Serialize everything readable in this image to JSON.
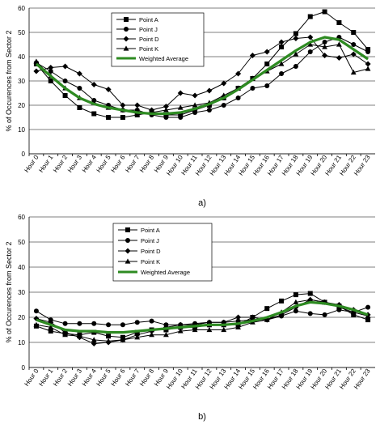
{
  "chart_data": [
    {
      "type": "line",
      "sub_label": "a)",
      "ylabel": "% of Occurences from Sector 2",
      "xlabel": "",
      "ylim": [
        0,
        60
      ],
      "yticks": [
        0,
        10,
        20,
        30,
        40,
        50,
        60
      ],
      "grid": "horizontal",
      "legend_position": "top-center",
      "categories": [
        "Hour 0",
        "Hour 1",
        "Hour 2",
        "Hour 3",
        "Hour 4",
        "Hour 5",
        "Hour 6",
        "Hour 7",
        "Hour 8",
        "Hour 9",
        "Hour 10",
        "Hour 11",
        "Hour 12",
        "Hour 13",
        "Hour 14",
        "Hour 15",
        "Hour 16",
        "Hour 17",
        "Hour 18",
        "Hour 19",
        "Hour 20",
        "Hour 21",
        "Hour 22",
        "Hour 23"
      ],
      "series": [
        {
          "name": "Point A",
          "marker": "square",
          "color": "#000000",
          "values": [
            37,
            30,
            24,
            19,
            16.5,
            15,
            15,
            16,
            17,
            16,
            16,
            18,
            20,
            23,
            27,
            31,
            37,
            44,
            49.5,
            56.5,
            58.5,
            54,
            50,
            43
          ]
        },
        {
          "name": "Point J",
          "marker": "circle",
          "color": "#000000",
          "values": [
            37.5,
            34,
            30,
            27,
            22,
            20,
            18,
            18,
            16,
            15,
            15,
            17,
            18,
            20,
            23,
            27,
            28,
            33,
            36,
            42,
            46,
            48,
            45,
            42
          ]
        },
        {
          "name": "Point D",
          "marker": "diamond",
          "color": "#000000",
          "values": [
            34,
            35.5,
            36,
            33,
            28.5,
            26.5,
            20,
            20,
            18,
            19.5,
            25,
            24,
            26,
            29,
            33,
            40.5,
            42,
            46,
            47.5,
            48,
            40.5,
            39.5,
            41,
            37
          ]
        },
        {
          "name": "Point K",
          "marker": "triangle",
          "color": "#000000",
          "values": [
            38,
            32,
            27,
            23,
            21,
            19,
            18,
            17,
            17,
            18,
            19,
            20,
            21,
            24,
            27,
            31,
            34,
            37,
            41,
            45,
            44,
            45,
            33.5,
            35
          ]
        },
        {
          "name": "Weighted Average",
          "marker": "none",
          "color": "#2e8b22",
          "values": [
            37,
            32,
            27,
            23,
            20.5,
            19,
            18,
            17,
            16.5,
            16.5,
            17,
            18.5,
            20.5,
            23,
            26.5,
            30.5,
            34.5,
            38.5,
            42.5,
            46,
            48,
            47,
            43,
            39
          ]
        }
      ]
    },
    {
      "type": "line",
      "sub_label": "b)",
      "ylabel": "% of Occurences from Sector 2",
      "xlabel": "",
      "ylim": [
        0,
        60
      ],
      "yticks": [
        0,
        10,
        20,
        30,
        40,
        50,
        60
      ],
      "grid": "horizontal",
      "legend_position": "top-center",
      "categories": [
        "Hour 0",
        "Hour 1",
        "Hour 2",
        "Hour 3",
        "Hour 4",
        "Hour 5",
        "Hour 6",
        "Hour 7",
        "Hour 8",
        "Hour 9",
        "Hour 10",
        "Hour 11",
        "Hour 12",
        "Hour 13",
        "Hour 14",
        "Hour 15",
        "Hour 16",
        "Hour 17",
        "Hour 18",
        "Hour 19",
        "Hour 20",
        "Hour 21",
        "Hour 22",
        "Hour 23"
      ],
      "series": [
        {
          "name": "Point A",
          "marker": "square",
          "color": "#000000",
          "values": [
            16.5,
            14.5,
            13.5,
            13,
            14,
            12.5,
            12,
            14,
            15,
            15,
            16,
            16,
            17,
            17,
            17,
            20,
            23.5,
            26.5,
            29,
            29.5,
            26,
            24.5,
            21,
            19
          ]
        },
        {
          "name": "Point J",
          "marker": "circle",
          "color": "#000000",
          "values": [
            22.5,
            19,
            17.5,
            17.5,
            17.5,
            17,
            17,
            18,
            18.5,
            17,
            17,
            17.5,
            18,
            18,
            18.5,
            19,
            19,
            20.5,
            22.5,
            21.5,
            21,
            23,
            22,
            24
          ]
        },
        {
          "name": "Point D",
          "marker": "diamond",
          "color": "#000000",
          "values": [
            19.5,
            18,
            14,
            12,
            9.5,
            10,
            11,
            13,
            14.5,
            16,
            17,
            17,
            18,
            18,
            20,
            20,
            19,
            21,
            24,
            27,
            26,
            25,
            23,
            21
          ]
        },
        {
          "name": "Point K",
          "marker": "triangle",
          "color": "#000000",
          "values": [
            17,
            16,
            13,
            12.5,
            11,
            10.5,
            11,
            12,
            13,
            13,
            14.5,
            15,
            15,
            15,
            16,
            18,
            19,
            22,
            26,
            27,
            26,
            24,
            22,
            20.5
          ]
        },
        {
          "name": "Weighted Average",
          "marker": "none",
          "color": "#2e8b22",
          "values": [
            19,
            17,
            15,
            14.5,
            14.5,
            14,
            14,
            14.5,
            15,
            15.5,
            16,
            16.5,
            17,
            17,
            17.5,
            18.5,
            20,
            22,
            24.5,
            26,
            25.5,
            24.5,
            23,
            21
          ]
        }
      ]
    }
  ]
}
